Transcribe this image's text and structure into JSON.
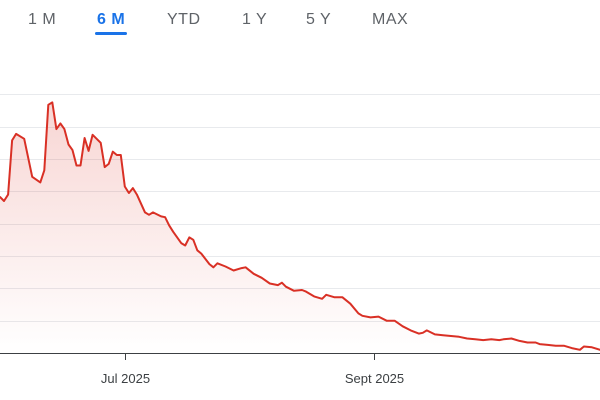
{
  "range_tabs": {
    "items": [
      {
        "label": "1 M",
        "active": false
      },
      {
        "label": "6 M",
        "active": true
      },
      {
        "label": "YTD",
        "active": false
      },
      {
        "label": "1 Y",
        "active": false
      },
      {
        "label": "5 Y",
        "active": false
      },
      {
        "label": "MAX",
        "active": false
      }
    ]
  },
  "colors": {
    "accent": "#1a73e8",
    "line": "#d93025",
    "grid": "#e8eaed",
    "axis": "#3c4043",
    "tab_text": "#5f6368"
  },
  "chart_data": {
    "type": "area",
    "title": "",
    "xlabel": "",
    "ylabel": "",
    "x_tick_labels": [
      "Jul 2025",
      "Sept 2025"
    ],
    "x_tick_dates": [
      "2025-07-01",
      "2025-09-01"
    ],
    "x_range": [
      "2025-05-31",
      "2025-10-27"
    ],
    "grid": true,
    "series": [
      {
        "x": [
          "2025-05-31",
          "2025-06-01",
          "2025-06-02",
          "2025-06-03",
          "2025-06-04",
          "2025-06-06",
          "2025-06-08",
          "2025-06-10",
          "2025-06-11",
          "2025-06-12",
          "2025-06-13",
          "2025-06-14",
          "2025-06-15",
          "2025-06-16",
          "2025-06-17",
          "2025-06-18",
          "2025-06-19",
          "2025-06-20",
          "2025-06-21",
          "2025-06-22",
          "2025-06-23",
          "2025-06-25",
          "2025-06-26",
          "2025-06-27",
          "2025-06-28",
          "2025-06-29",
          "2025-06-30",
          "2025-07-01",
          "2025-07-02",
          "2025-07-03",
          "2025-07-04",
          "2025-07-06",
          "2025-07-07",
          "2025-07-08",
          "2025-07-10",
          "2025-07-11",
          "2025-07-12",
          "2025-07-13",
          "2025-07-15",
          "2025-07-16",
          "2025-07-17",
          "2025-07-18",
          "2025-07-19",
          "2025-07-20",
          "2025-07-22",
          "2025-07-23",
          "2025-07-24",
          "2025-07-26",
          "2025-07-28",
          "2025-07-30",
          "2025-07-31",
          "2025-08-02",
          "2025-08-04",
          "2025-08-06",
          "2025-08-08",
          "2025-08-09",
          "2025-08-10",
          "2025-08-12",
          "2025-08-14",
          "2025-08-15",
          "2025-08-17",
          "2025-08-19",
          "2025-08-20",
          "2025-08-22",
          "2025-08-24",
          "2025-08-26",
          "2025-08-28",
          "2025-08-29",
          "2025-08-31",
          "2025-09-02",
          "2025-09-04",
          "2025-09-06",
          "2025-09-08",
          "2025-09-10",
          "2025-09-12",
          "2025-09-13",
          "2025-09-14",
          "2025-09-16",
          "2025-09-18",
          "2025-09-20",
          "2025-09-22",
          "2025-09-24",
          "2025-09-26",
          "2025-09-28",
          "2025-09-30",
          "2025-10-02",
          "2025-10-03",
          "2025-10-05",
          "2025-10-07",
          "2025-10-09",
          "2025-10-11",
          "2025-10-12",
          "2025-10-14",
          "2025-10-16",
          "2025-10-18",
          "2025-10-20",
          "2025-10-22",
          "2025-10-23",
          "2025-10-25",
          "2025-10-27"
        ],
        "values": [
          55.3,
          54.8,
          55.6,
          62.3,
          63.1,
          62.5,
          57.8,
          57.1,
          58.6,
          66.7,
          67.0,
          63.7,
          64.4,
          63.7,
          61.8,
          61.1,
          59.2,
          59.2,
          62.6,
          61.0,
          63.0,
          62.0,
          59.0,
          59.4,
          60.9,
          60.5,
          60.5,
          56.6,
          55.8,
          56.4,
          55.6,
          53.4,
          53.1,
          53.4,
          52.9,
          52.8,
          51.8,
          51.0,
          49.6,
          49.3,
          50.3,
          50.0,
          48.7,
          48.3,
          47.0,
          46.6,
          47.1,
          46.7,
          46.2,
          46.5,
          46.6,
          45.8,
          45.3,
          44.6,
          44.4,
          44.7,
          44.2,
          43.7,
          43.8,
          43.6,
          43.0,
          42.7,
          43.2,
          42.9,
          42.9,
          42.1,
          40.9,
          40.6,
          40.4,
          40.5,
          40.0,
          40.0,
          39.3,
          38.8,
          38.4,
          38.5,
          38.8,
          38.3,
          38.2,
          38.1,
          38.0,
          37.8,
          37.7,
          37.6,
          37.7,
          37.6,
          37.7,
          37.8,
          37.5,
          37.3,
          37.3,
          37.1,
          37.0,
          36.9,
          36.9,
          36.6,
          36.4,
          36.8,
          36.7,
          36.4
        ]
      }
    ]
  }
}
